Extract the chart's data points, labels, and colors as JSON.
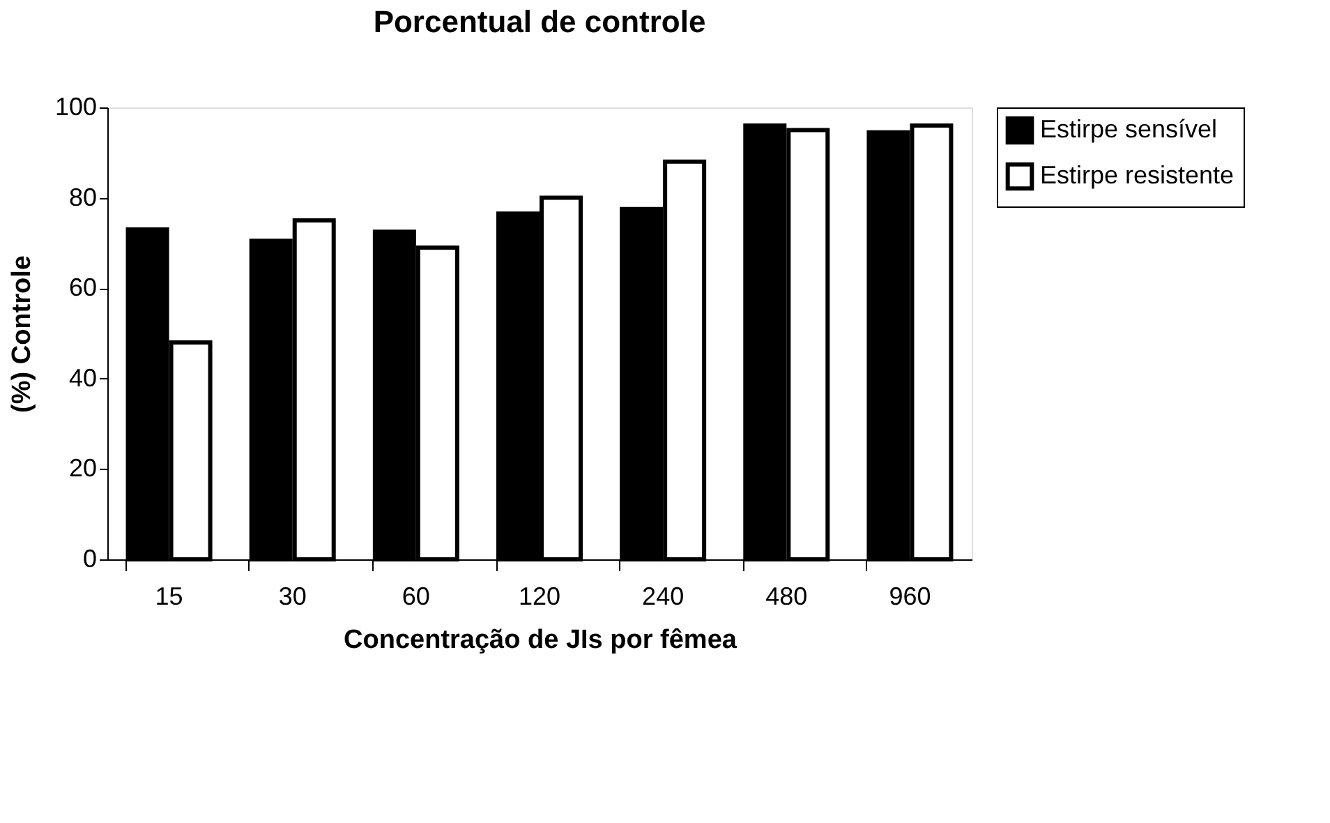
{
  "chart_data": {
    "type": "bar",
    "title": "Porcentual de controle",
    "xlabel": "Concentração de JIs por fêmea",
    "ylabel": "(%) Controle",
    "categories": [
      "15",
      "30",
      "60",
      "120",
      "240",
      "480",
      "960"
    ],
    "series": [
      {
        "name": "Estirpe sensível",
        "color": "#000000",
        "values": [
          73,
          70.5,
          72.5,
          76.5,
          77.5,
          96,
          94.5
        ]
      },
      {
        "name": "Estirpe resistente",
        "color": "#ffffff",
        "values": [
          48,
          75,
          69,
          80,
          88,
          95,
          96
        ]
      }
    ],
    "ylim": [
      0,
      100
    ],
    "yticks": [
      0,
      20,
      40,
      60,
      80,
      100
    ],
    "grid": false,
    "legend": "right"
  }
}
